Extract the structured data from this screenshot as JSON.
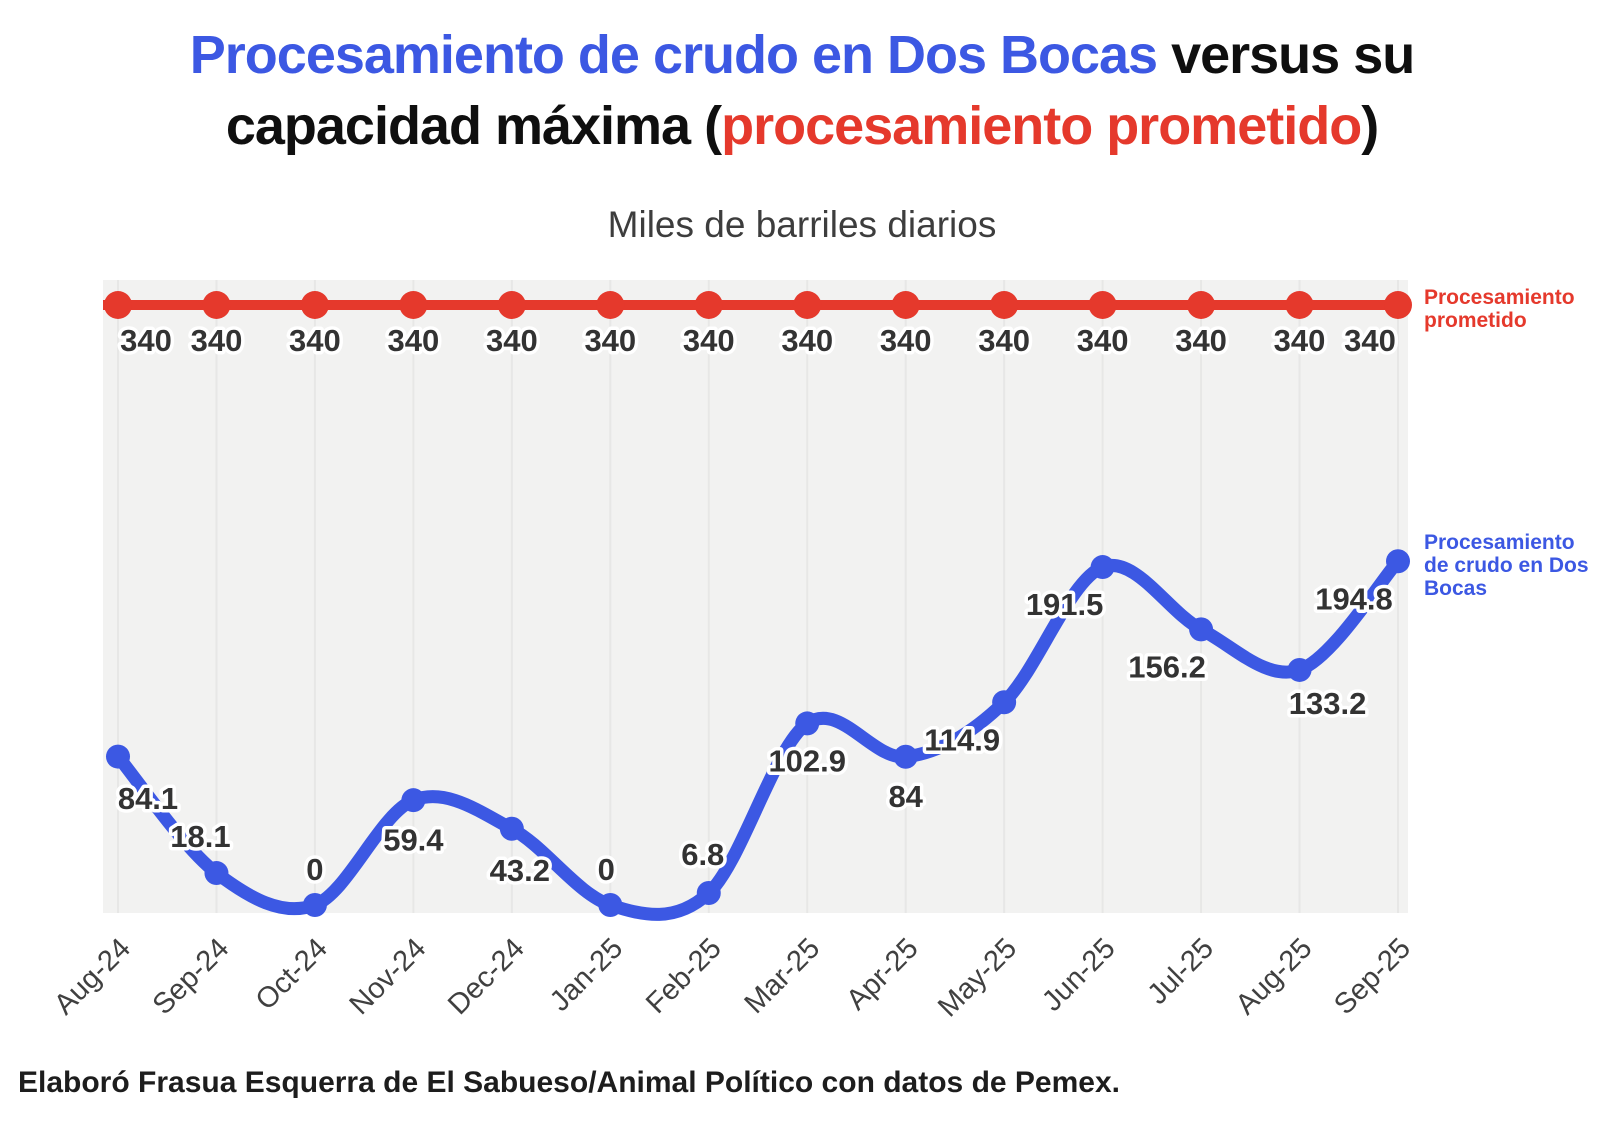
{
  "title": {
    "line1_colored": "Procesamiento de crudo en Dos Bocas",
    "line1_rest": " versus su",
    "line2_pre": "capacidad máxima (",
    "line2_colored": "procesamiento prometido",
    "line2_post": ")"
  },
  "subtitle": "Miles de barriles diarios",
  "legend": {
    "promised": "Procesamiento prometido",
    "actual": "Procesamiento de crudo en Dos Bocas"
  },
  "footer": "Elaboró Frasua Esquerra de El Sabueso/Animal Político con datos de Pemex.",
  "colors": {
    "blue": "#3c58e3",
    "red": "#e5392c",
    "data_label": "#333333",
    "axis_label": "#404040",
    "plot_background": "#f2f2f1",
    "gridline": "#e7e7e6"
  },
  "chart_data": {
    "type": "line",
    "categories": [
      "Aug-24",
      "Sep-24",
      "Oct-24",
      "Nov-24",
      "Dec-24",
      "Jan-25",
      "Feb-25",
      "Mar-25",
      "Apr-25",
      "May-25",
      "Jun-25",
      "Jul-25",
      "Aug-25",
      "Sep-25"
    ],
    "series": [
      {
        "name": "Procesamiento prometido",
        "color_key": "red",
        "values": [
          340,
          340,
          340,
          340,
          340,
          340,
          340,
          340,
          340,
          340,
          340,
          340,
          340,
          340
        ]
      },
      {
        "name": "Procesamiento de crudo en Dos Bocas",
        "color_key": "blue",
        "values": [
          84.1,
          18.1,
          0,
          59.4,
          43.2,
          0,
          6.8,
          102.9,
          84,
          114.9,
          191.5,
          156.2,
          133.2,
          194.8
        ]
      }
    ],
    "ylabel": "Miles de barriles diarios",
    "xlabel": "",
    "ylim": [
      0,
      360
    ],
    "grid": "vertical",
    "legend_position": "right",
    "data_labels": true
  }
}
